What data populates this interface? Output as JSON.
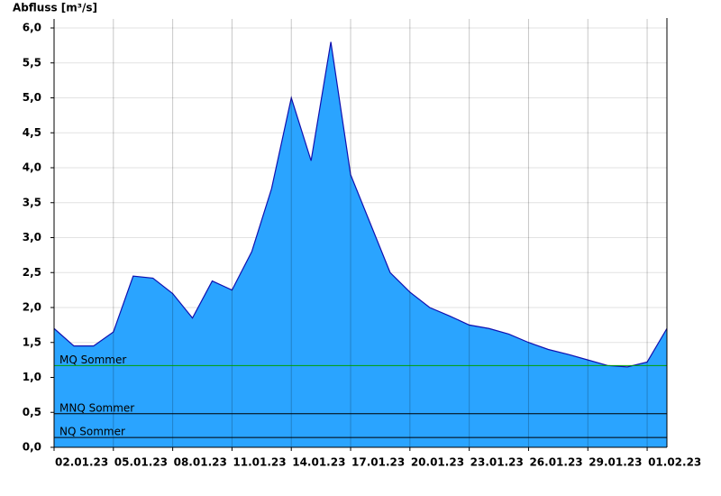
{
  "chart_data": {
    "type": "area",
    "y_label": "Abfluss [m³/s]",
    "x": [
      "02.01.23",
      "03.01.23",
      "04.01.23",
      "05.01.23",
      "06.01.23",
      "07.01.23",
      "08.01.23",
      "09.01.23",
      "10.01.23",
      "11.01.23",
      "12.01.23",
      "13.01.23",
      "14.01.23",
      "15.01.23",
      "16.01.23",
      "17.01.23",
      "18.01.23",
      "19.01.23",
      "20.01.23",
      "21.01.23",
      "22.01.23",
      "23.01.23",
      "24.01.23",
      "25.01.23",
      "26.01.23",
      "27.01.23",
      "28.01.23",
      "29.01.23",
      "30.01.23",
      "31.01.23",
      "01.02.23",
      "02.02.23"
    ],
    "values": [
      1.7,
      1.45,
      1.45,
      1.65,
      2.45,
      2.42,
      2.2,
      1.85,
      2.38,
      2.25,
      2.8,
      3.7,
      5.0,
      4.1,
      5.8,
      3.9,
      3.2,
      2.5,
      2.22,
      2.0,
      1.88,
      1.75,
      1.7,
      1.62,
      1.5,
      1.4,
      1.33,
      1.25,
      1.17,
      1.15,
      1.22,
      1.7
    ],
    "color": "#2aa4ff",
    "line_color": "#1010b0",
    "xlim": [
      "02.01.23",
      "02.02.23"
    ],
    "xticks": [
      "02.01.23",
      "05.01.23",
      "08.01.23",
      "11.01.23",
      "14.01.23",
      "17.01.23",
      "20.01.23",
      "23.01.23",
      "26.01.23",
      "29.01.23",
      "01.02.23"
    ],
    "ylim": [
      0,
      6
    ],
    "yticks": [
      {
        "value": 0,
        "label": "0,0"
      },
      {
        "value": 0.5,
        "label": "0,5"
      },
      {
        "value": 1,
        "label": "1,0"
      },
      {
        "value": 1.5,
        "label": "1,5"
      },
      {
        "value": 2,
        "label": "2,0"
      },
      {
        "value": 2.5,
        "label": "2,5"
      },
      {
        "value": 3,
        "label": "3,0"
      },
      {
        "value": 3.5,
        "label": "3,5"
      },
      {
        "value": 4,
        "label": "4,0"
      },
      {
        "value": 4.5,
        "label": "4,5"
      },
      {
        "value": 5,
        "label": "5,0"
      },
      {
        "value": 5.5,
        "label": "5,5"
      },
      {
        "value": 6,
        "label": "6,0"
      }
    ],
    "grid": true,
    "reference_lines": [
      {
        "label": "MQ Sommer",
        "value": 1.17,
        "color": "#00a000"
      },
      {
        "label": "MNQ Sommer",
        "value": 0.48,
        "color": "#000000"
      },
      {
        "label": "NQ Sommer",
        "value": 0.14,
        "color": "#000000"
      }
    ]
  }
}
